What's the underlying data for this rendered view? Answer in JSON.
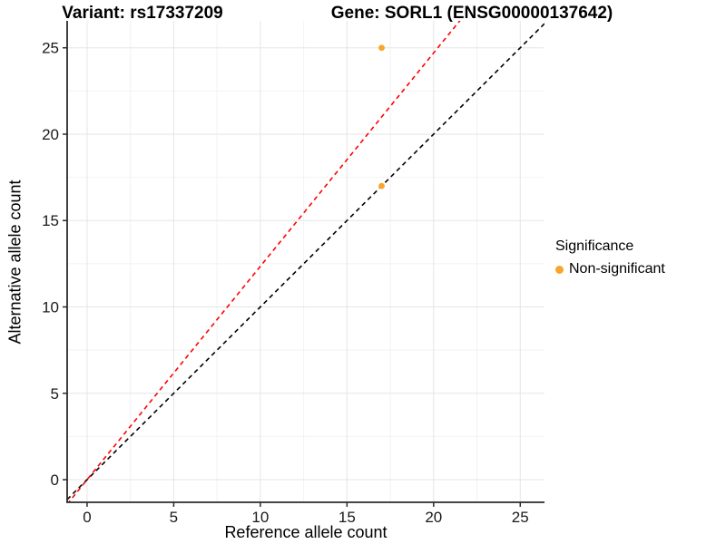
{
  "chart_data": {
    "type": "scatter",
    "title_left": "Variant: rs17337209",
    "title_right": "Gene: SORL1 (ENSG00000137642)",
    "xlabel": "Reference allele count",
    "ylabel": "Alternative allele count",
    "x_ticks": [
      0,
      5,
      10,
      15,
      20,
      25
    ],
    "y_ticks": [
      0,
      5,
      10,
      15,
      20,
      25
    ],
    "x_minor_ticks": [
      2.5,
      7.5,
      12.5,
      17.5,
      22.5
    ],
    "y_minor_ticks": [
      2.5,
      7.5,
      12.5,
      17.5,
      22.5
    ],
    "xlim": [
      -1.15,
      26.4
    ],
    "ylim": [
      -1.31,
      26.56
    ],
    "grid": "major+minor",
    "points": [
      {
        "x": 17,
        "y": 25,
        "series": "Non-significant"
      },
      {
        "x": 17,
        "y": 17,
        "series": "Non-significant"
      }
    ],
    "lines": [
      {
        "name": "identity-line",
        "slope": 1,
        "intercept": 0,
        "color": "#000000",
        "style": "dashed"
      },
      {
        "name": "ratio-line",
        "slope": 1.235,
        "intercept": 0,
        "color": "#FF0000",
        "style": "dashed"
      }
    ],
    "legend": {
      "title": "Significance",
      "position": "right",
      "entries": [
        {
          "label": "Non-significant",
          "color": "#F7A52B"
        }
      ]
    },
    "colors": {
      "point": "#F7A52B",
      "axis": "#2B2B2B",
      "tick_label": "#1A1A1A",
      "grid_major": "#E5E5E5",
      "grid_minor": "#F2F2F2",
      "background": "#FFFFFF"
    }
  }
}
